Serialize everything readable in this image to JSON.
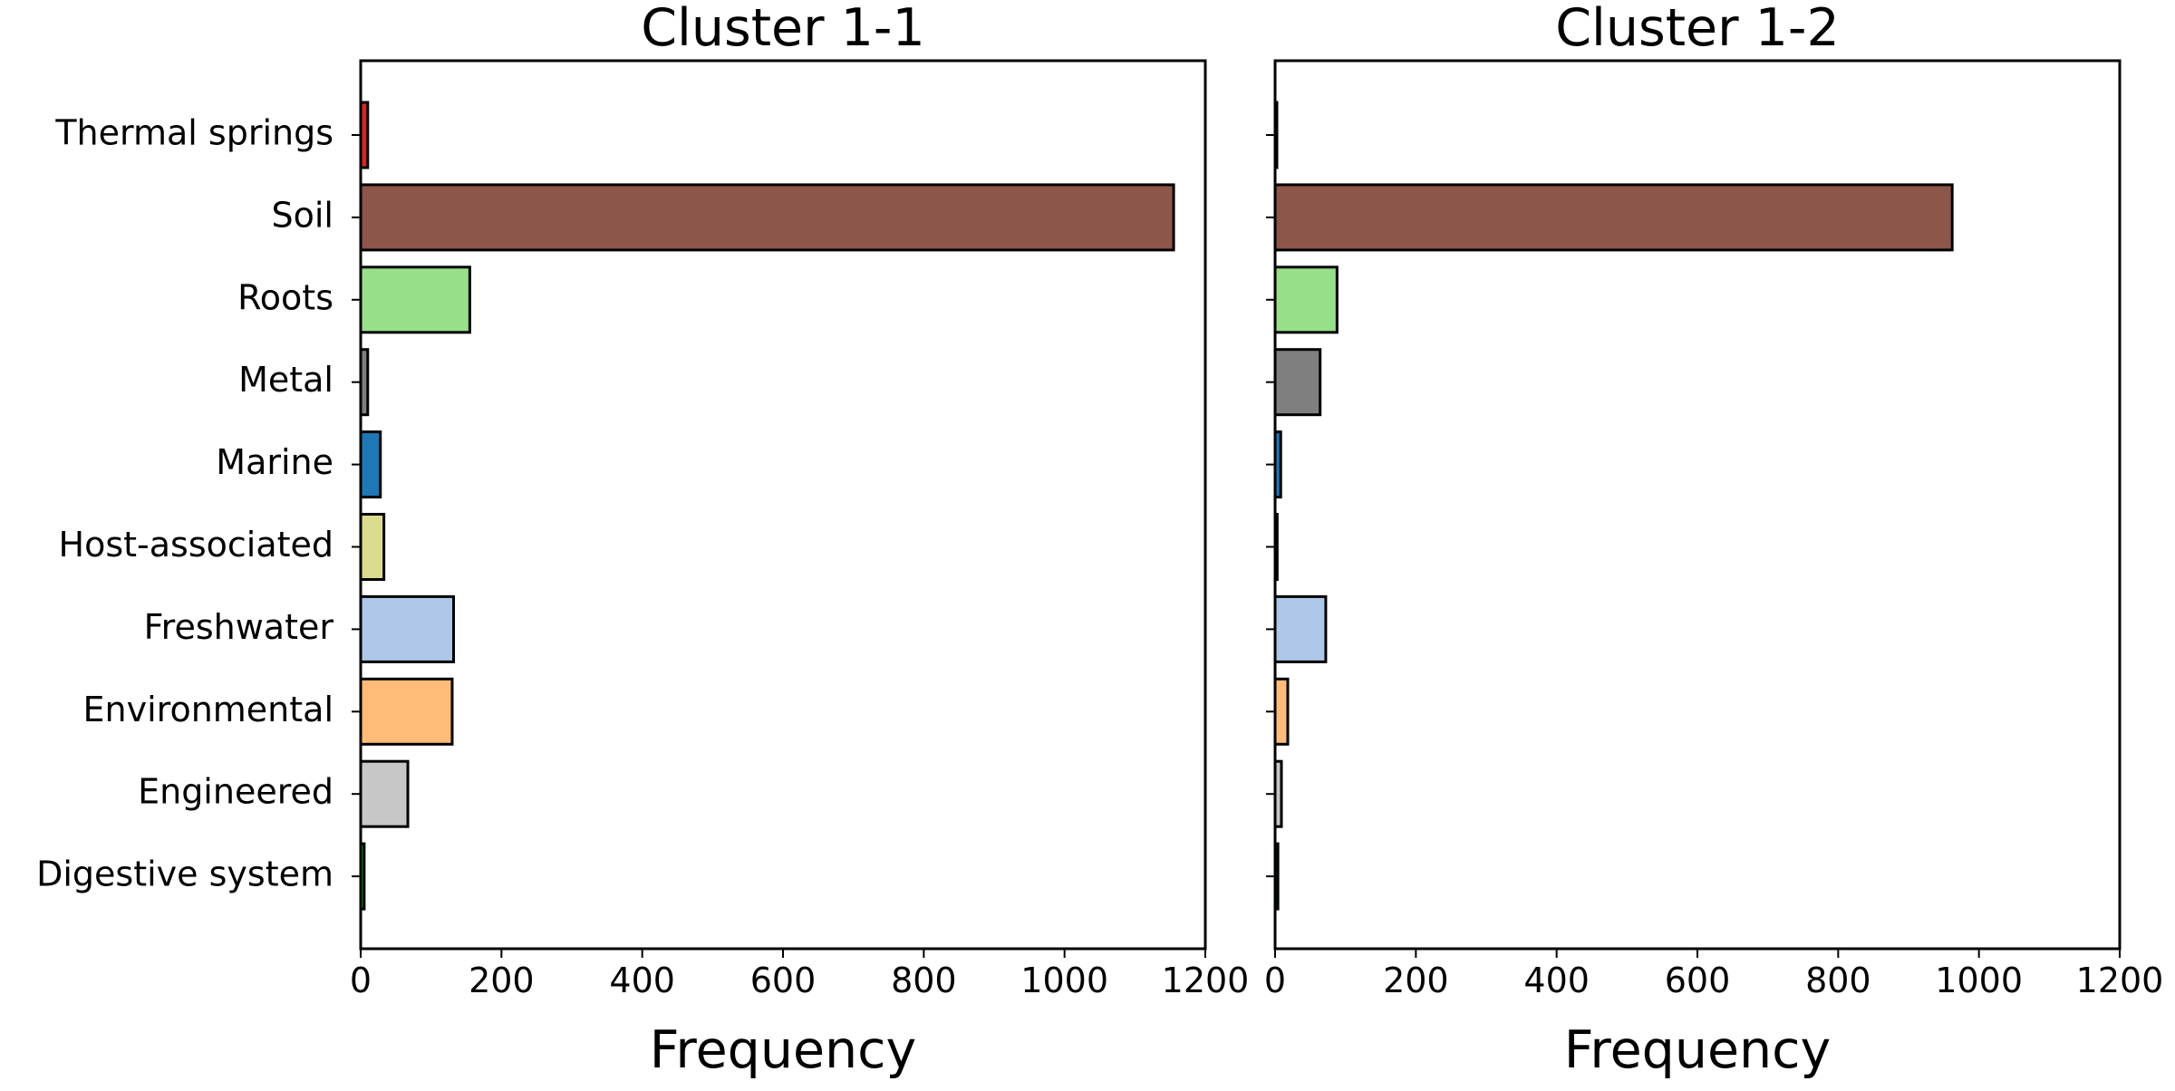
{
  "chart_data": [
    {
      "type": "bar",
      "orientation": "horizontal",
      "title": "Cluster 1-1",
      "xlabel": "Frequency",
      "ylabel": "",
      "xlim": [
        0,
        1200
      ],
      "xticks": [
        "0",
        "200",
        "400",
        "600",
        "800",
        "1000",
        "1200"
      ],
      "categories": [
        "Thermal springs",
        "Soil",
        "Roots",
        "Metal",
        "Marine",
        "Host-associated",
        "Freshwater",
        "Environmental",
        "Engineered",
        "Digestive system"
      ],
      "values": [
        10,
        1155,
        155,
        10,
        28,
        33,
        132,
        130,
        67,
        5
      ],
      "show_category_labels": true,
      "grid": false
    },
    {
      "type": "bar",
      "orientation": "horizontal",
      "title": "Cluster 1-2",
      "xlabel": "Frequency",
      "ylabel": "",
      "xlim": [
        0,
        1200
      ],
      "xticks": [
        "0",
        "200",
        "400",
        "600",
        "800",
        "1000",
        "1200"
      ],
      "categories": [
        "Thermal springs",
        "Soil",
        "Roots",
        "Metal",
        "Marine",
        "Host-associated",
        "Freshwater",
        "Environmental",
        "Engineered",
        "Digestive system"
      ],
      "values": [
        1,
        962,
        88,
        64,
        8,
        3,
        72,
        18,
        9,
        4
      ],
      "show_category_labels": false,
      "grid": false
    }
  ],
  "colors": {
    "Thermal springs": "#d62728",
    "Soil": "#8c564b",
    "Roots": "#98df8a",
    "Metal": "#7f7f7f",
    "Marine": "#1f77b4",
    "Host-associated": "#dbdb8d",
    "Freshwater": "#aec7e8",
    "Environmental": "#ffbb78",
    "Engineered": "#c7c7c7",
    "Digestive system": "#2ca02c"
  }
}
